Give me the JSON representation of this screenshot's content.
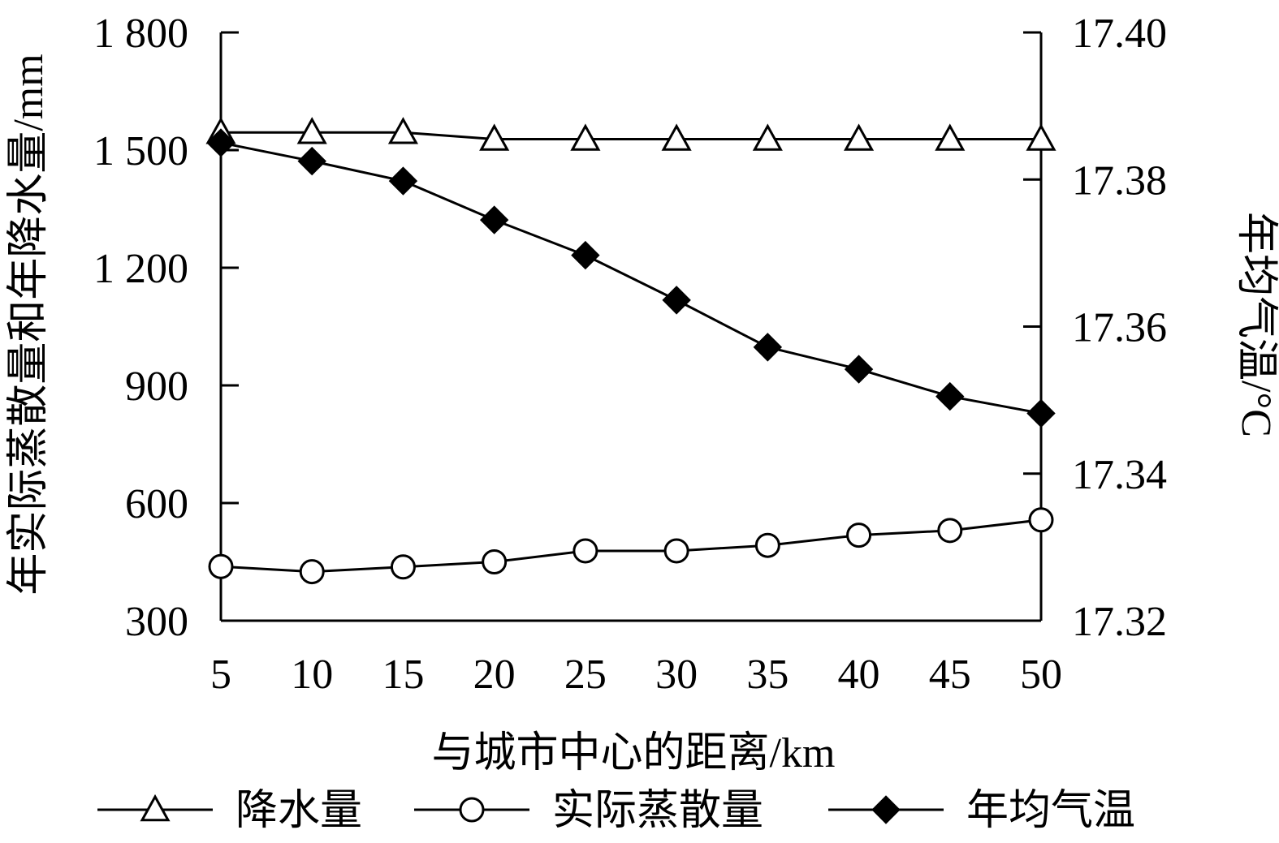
{
  "chart_data": {
    "type": "line",
    "xlabel": "与城市中心的距离/km",
    "ylabel_left": "年实际蒸散量和年降水量/mm",
    "ylabel_right": "年均气温/°C",
    "x": [
      5,
      10,
      15,
      20,
      25,
      30,
      35,
      40,
      45,
      50
    ],
    "x_tick_labels": [
      "5",
      "10",
      "15",
      "20",
      "25",
      "30",
      "35",
      "40",
      "45",
      "50"
    ],
    "ylim_left": [
      300,
      1800
    ],
    "ylim_right": [
      17.32,
      17.4
    ],
    "y_left_ticks": [
      300,
      600,
      900,
      1200,
      1500,
      1800
    ],
    "y_left_tick_labels": [
      "300",
      "600",
      "900",
      "1 200",
      "1 500",
      "1 800"
    ],
    "y_right_ticks": [
      17.32,
      17.34,
      17.36,
      17.38,
      17.4
    ],
    "y_right_tick_labels": [
      "17.32",
      "17.34",
      "17.36",
      "17.38",
      "17.40"
    ],
    "grid": false,
    "legend_position": "bottom",
    "series": [
      {
        "name": "降水量",
        "axis": "left",
        "marker": "triangle-open",
        "values": [
          1545,
          1545,
          1545,
          1528,
          1528,
          1528,
          1528,
          1528,
          1528,
          1528
        ]
      },
      {
        "name": "实际蒸散量",
        "axis": "left",
        "marker": "circle-open",
        "values": [
          438,
          425,
          437,
          450,
          478,
          478,
          492,
          518,
          530,
          557
        ]
      },
      {
        "name": "年均气温",
        "axis": "right",
        "marker": "diamond-filled",
        "values": [
          17.385,
          17.3825,
          17.3798,
          17.3745,
          17.3697,
          17.3636,
          17.3572,
          17.3542,
          17.3505,
          17.3482
        ]
      }
    ]
  }
}
